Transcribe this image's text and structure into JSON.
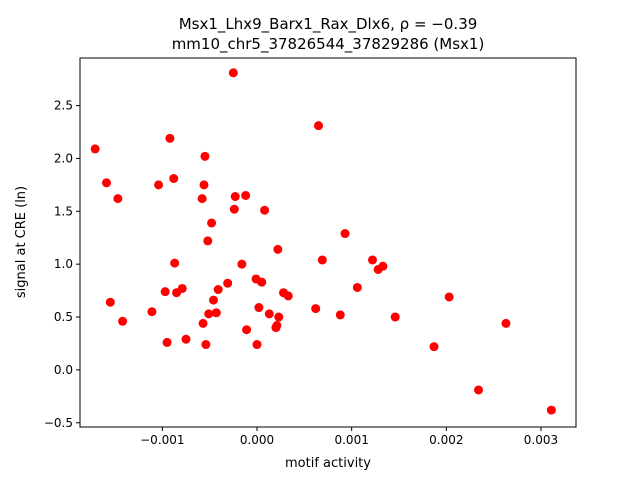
{
  "chart_data": {
    "type": "scatter",
    "title_line1": "Msx1_Lhx9_Barx1_Rax_Dlx6, ρ = −0.39",
    "title_line2": "mm10_chr5_37826544_37829286 (Msx1)",
    "xlabel": "motif activity",
    "ylabel": "signal at CRE (ln)",
    "xlim": [
      -0.00187,
      0.00337
    ],
    "ylim": [
      -0.54,
      2.95
    ],
    "xticks": [
      {
        "value": -0.001,
        "label": "−0.001"
      },
      {
        "value": 0.0,
        "label": "0.000"
      },
      {
        "value": 0.001,
        "label": "0.001"
      },
      {
        "value": 0.002,
        "label": "0.002"
      },
      {
        "value": 0.003,
        "label": "0.003"
      }
    ],
    "yticks": [
      {
        "value": -0.5,
        "label": "−0.5"
      },
      {
        "value": 0.0,
        "label": "0.0"
      },
      {
        "value": 0.5,
        "label": "0.5"
      },
      {
        "value": 1.0,
        "label": "1.0"
      },
      {
        "value": 1.5,
        "label": "1.5"
      },
      {
        "value": 2.0,
        "label": "2.0"
      },
      {
        "value": 2.5,
        "label": "2.5"
      }
    ],
    "grid": false,
    "marker_color": "#ff0000",
    "points": [
      [
        -0.00171,
        2.09
      ],
      [
        -0.00159,
        1.77
      ],
      [
        -0.00147,
        1.62
      ],
      [
        -0.00155,
        0.64
      ],
      [
        -0.00142,
        0.46
      ],
      [
        -0.00111,
        0.55
      ],
      [
        -0.00104,
        1.75
      ],
      [
        -0.00097,
        0.74
      ],
      [
        -0.00095,
        0.26
      ],
      [
        -0.00092,
        2.19
      ],
      [
        -0.00088,
        1.81
      ],
      [
        -0.00087,
        1.01
      ],
      [
        -0.00085,
        0.73
      ],
      [
        -0.00075,
        0.29
      ],
      [
        -0.00079,
        0.77
      ],
      [
        -0.00058,
        1.62
      ],
      [
        -0.00056,
        1.75
      ],
      [
        -0.00055,
        2.02
      ],
      [
        -0.00057,
        0.44
      ],
      [
        -0.00054,
        0.24
      ],
      [
        -0.00052,
        1.22
      ],
      [
        -0.00051,
        0.53
      ],
      [
        -0.00048,
        1.39
      ],
      [
        -0.00046,
        0.66
      ],
      [
        -0.00043,
        0.54
      ],
      [
        -0.00041,
        0.76
      ],
      [
        -0.00031,
        0.82
      ],
      [
        -0.00025,
        2.81
      ],
      [
        -0.00024,
        1.52
      ],
      [
        -0.00023,
        1.64
      ],
      [
        -0.00016,
        1.0
      ],
      [
        -0.00012,
        1.65
      ],
      [
        -0.00011,
        0.38
      ],
      [
        -1e-05,
        0.86
      ],
      [
        0.0,
        0.24
      ],
      [
        2e-05,
        0.59
      ],
      [
        5e-05,
        0.83
      ],
      [
        8e-05,
        1.51
      ],
      [
        0.00013,
        0.53
      ],
      [
        0.0002,
        0.4
      ],
      [
        0.00021,
        0.42
      ],
      [
        0.00022,
        1.14
      ],
      [
        0.00023,
        0.5
      ],
      [
        0.00028,
        0.73
      ],
      [
        0.00033,
        0.7
      ],
      [
        0.00062,
        0.58
      ],
      [
        0.00065,
        2.31
      ],
      [
        0.00069,
        1.04
      ],
      [
        0.00088,
        0.52
      ],
      [
        0.00093,
        1.29
      ],
      [
        0.00106,
        0.78
      ],
      [
        0.00122,
        1.04
      ],
      [
        0.00128,
        0.95
      ],
      [
        0.00133,
        0.98
      ],
      [
        0.00146,
        0.5
      ],
      [
        0.00187,
        0.22
      ],
      [
        0.00203,
        0.69
      ],
      [
        0.00234,
        -0.19
      ],
      [
        0.00263,
        0.44
      ],
      [
        0.00311,
        -0.38
      ]
    ]
  }
}
